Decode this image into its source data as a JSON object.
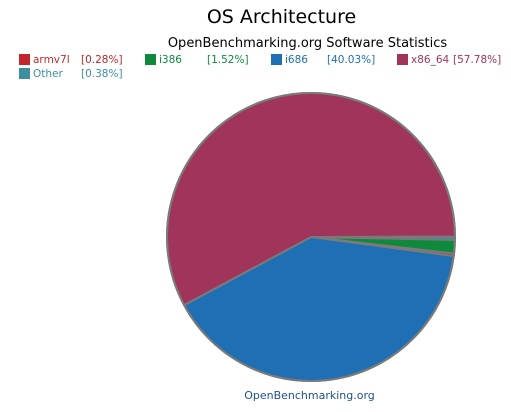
{
  "chart_data": {
    "type": "pie",
    "title": "OS Architecture",
    "subtitle": "OpenBenchmarking.org Software Statistics",
    "slices": [
      {
        "label": "armv7l",
        "value": 0.28,
        "pct_text": "[0.28%]",
        "color": "#c0282d"
      },
      {
        "label": "i386",
        "value": 1.52,
        "pct_text": "[1.52%]",
        "color": "#0f8a3c"
      },
      {
        "label": "i686",
        "value": 40.03,
        "pct_text": "[40.03%]",
        "color": "#1f6fb5"
      },
      {
        "label": "x86_64",
        "value": 57.78,
        "pct_text": "[57.78%]",
        "color": "#a0345a"
      },
      {
        "label": "Other",
        "value": 0.38,
        "pct_text": "[0.38%]",
        "color": "#3d8fa0"
      }
    ],
    "legend_position": "top-left",
    "footer": "OpenBenchmarking.org"
  }
}
